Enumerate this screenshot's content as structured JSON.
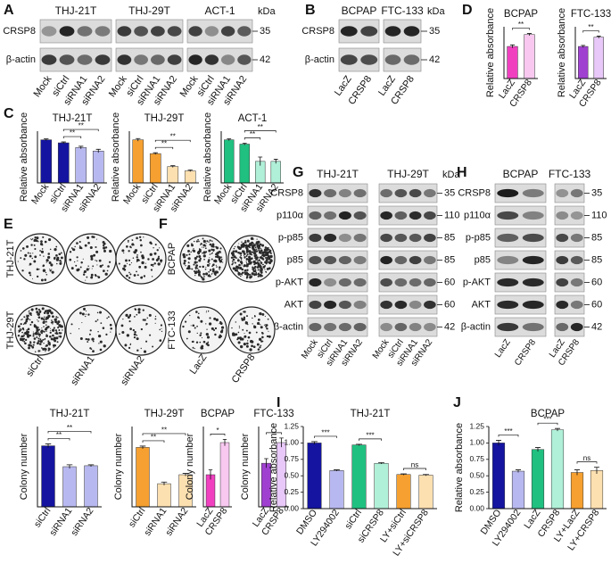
{
  "panels": [
    {
      "label": "A",
      "blot": {
        "groups": [
          {
            "name": "THJ-21T",
            "lanes": [
              "Mock",
              "siCtrl",
              "siRNA1",
              "siRNA2"
            ]
          },
          {
            "name": "THJ-29T",
            "lanes": [
              "Mock",
              "siCtrl",
              "siRNA1",
              "siRNA2"
            ]
          },
          {
            "name": "ACT-1",
            "lanes": [
              "Mock",
              "siCtrl",
              "siRNA1",
              "siRNA2"
            ]
          }
        ],
        "rows": [
          "CRSP8",
          "β-actin"
        ],
        "kda": [
          35,
          42
        ],
        "kda_unit": "kDa"
      }
    },
    {
      "label": "B",
      "blot": {
        "groups": [
          {
            "name": "BCPAP",
            "lanes": [
              "LacZ",
              "CRSP8"
            ]
          },
          {
            "name": "FTC-133",
            "lanes": [
              "LacZ",
              "CRSP8"
            ]
          }
        ],
        "rows": [
          "CRSP8",
          "β-actin"
        ],
        "kda": [
          35,
          42
        ],
        "kda_unit": "kDa"
      }
    },
    {
      "label": "D",
      "charts": [
        {
          "type": "bar",
          "title": "BCPAP",
          "ylabel": "Relative absorbance",
          "categories": [
            "LacZ",
            "CRSP8"
          ],
          "values": [
            0.62,
            0.85
          ],
          "errors": [
            0.03,
            0.02
          ],
          "colors": [
            "#f040c0",
            "#f8c8f0"
          ],
          "ylim": [
            0,
            1.0
          ],
          "significance": [
            {
              "label": "**",
              "between": [
                0,
                1
              ]
            }
          ]
        },
        {
          "type": "bar",
          "title": "FTC-133",
          "ylabel": "Relative absorbance",
          "categories": [
            "LacZ",
            "CRSP8"
          ],
          "values": [
            0.62,
            0.8
          ],
          "errors": [
            0.02,
            0.02
          ],
          "colors": [
            "#a040d0",
            "#e8c8f8"
          ],
          "ylim": [
            0,
            1.0
          ],
          "significance": [
            {
              "label": "**",
              "between": [
                0,
                1
              ]
            }
          ]
        }
      ]
    },
    {
      "label": "C",
      "charts": [
        {
          "type": "bar",
          "title": "THJ-21T",
          "ylabel": "Relative absorbance",
          "categories": [
            "Mock",
            "siCtrl",
            "siRNA1",
            "siRNA2"
          ],
          "values": [
            1.0,
            0.93,
            0.82,
            0.74
          ],
          "errors": [
            0.02,
            0.02,
            0.03,
            0.04
          ],
          "colors": [
            "#1414a0",
            "#1414a0",
            "#b8b8f0",
            "#b8b8f0"
          ],
          "ylim": [
            0,
            1.2
          ],
          "significance": [
            {
              "label": "**",
              "between": [
                1,
                2
              ]
            },
            {
              "label": "**",
              "between": [
                1,
                3
              ]
            }
          ]
        },
        {
          "type": "bar",
          "title": "THJ-29T",
          "ylabel": "Relative absorbance",
          "categories": [
            "Mock",
            "siCtrl",
            "siRNA1",
            "siRNA2"
          ],
          "values": [
            1.0,
            0.68,
            0.38,
            0.28
          ],
          "errors": [
            0.03,
            0.02,
            0.02,
            0.02
          ],
          "colors": [
            "#f5a030",
            "#f5a030",
            "#fde0b0",
            "#fde0b0"
          ],
          "ylim": [
            0,
            1.2
          ],
          "significance": [
            {
              "label": "**",
              "between": [
                1,
                2
              ]
            },
            {
              "label": "**",
              "between": [
                1,
                3
              ]
            }
          ]
        },
        {
          "type": "bar",
          "title": "ACT-1",
          "ylabel": "Relative absorbance",
          "categories": [
            "Mock",
            "siCtrl",
            "siRNA1",
            "siRNA2"
          ],
          "values": [
            1.0,
            0.9,
            0.5,
            0.5
          ],
          "errors": [
            0.02,
            0.02,
            0.1,
            0.05
          ],
          "colors": [
            "#20c080",
            "#20c080",
            "#b0f0d8",
            "#b0f0d8"
          ],
          "ylim": [
            0,
            1.2
          ],
          "significance": [
            {
              "label": "**",
              "between": [
                1,
                2
              ]
            },
            {
              "label": "**",
              "between": [
                1,
                3
              ]
            }
          ]
        }
      ]
    },
    {
      "label": "G",
      "blot": {
        "groups": [
          {
            "name": "THJ-21T",
            "lanes": [
              "Mock",
              "siCtrl",
              "siRNA1",
              "siRNA2"
            ]
          },
          {
            "name": "THJ-29T",
            "lanes": [
              "Mock",
              "siCtrl",
              "siRNA1",
              "siRNA2"
            ]
          }
        ],
        "rows": [
          "CRSP8",
          "p110α",
          "p-p85",
          "p85",
          "p-AKT",
          "AKT",
          "β-actin"
        ],
        "kda": [
          35,
          110,
          85,
          85,
          60,
          60,
          42
        ],
        "kda_unit": "kDa"
      }
    },
    {
      "label": "H",
      "blot": {
        "groups": [
          {
            "name": "BCPAP",
            "lanes": [
              "LacZ",
              "CRSP8"
            ]
          },
          {
            "name": "FTC-133",
            "lanes": [
              "LacZ",
              "CRSP8"
            ]
          }
        ],
        "rows": [
          "CRSP8",
          "p110α",
          "p-p85",
          "p85",
          "p-AKT",
          "AKT",
          "β-actin"
        ],
        "kda": [
          35,
          110,
          85,
          85,
          60,
          60,
          42
        ]
      }
    },
    {
      "label": "E",
      "colonies": {
        "rows": [
          "THJ-21T",
          "THJ-29T"
        ],
        "columns": [
          "siCtrl",
          "siRNA1",
          "siRNA2"
        ]
      },
      "charts": [
        {
          "type": "bar",
          "title": "THJ-21T",
          "ylabel": "Colony number",
          "categories": [
            "siCtrl",
            "siRNA1",
            "siRNA2"
          ],
          "values": [
            190,
            125,
            128
          ],
          "errors": [
            6,
            6,
            3
          ],
          "colors": [
            "#1414a0",
            "#b8b8f0",
            "#b8b8f0"
          ],
          "ylim": [
            0,
            250
          ],
          "significance": [
            {
              "label": "**",
              "between": [
                0,
                1
              ]
            },
            {
              "label": "**",
              "between": [
                0,
                2
              ]
            }
          ]
        },
        {
          "type": "bar",
          "title": "THJ-29T",
          "ylabel": "Colony number",
          "categories": [
            "siCtrl",
            "siRNA1",
            "siRNA2"
          ],
          "values": [
            185,
            72,
            100
          ],
          "errors": [
            4,
            5,
            4
          ],
          "colors": [
            "#f5a030",
            "#fde0b0",
            "#fde0b0"
          ],
          "ylim": [
            0,
            250
          ],
          "significance": [
            {
              "label": "**",
              "between": [
                0,
                1
              ]
            },
            {
              "label": "**",
              "between": [
                0,
                2
              ]
            }
          ]
        }
      ]
    },
    {
      "label": "F",
      "colonies": {
        "rows": [
          "BCPAP",
          "FTC-133"
        ],
        "columns": [
          "LacZ",
          "CRSP8"
        ]
      },
      "charts": [
        {
          "type": "bar",
          "title": "BCPAP",
          "ylabel": "Colony number",
          "categories": [
            "LacZ",
            "CRSP8"
          ],
          "values": [
            20,
            40
          ],
          "errors": [
            3,
            2
          ],
          "colors": [
            "#f040c0",
            "#f8c8f0"
          ],
          "ylim": [
            0,
            50
          ],
          "significance": [
            {
              "label": "*",
              "between": [
                0,
                1
              ]
            }
          ]
        },
        {
          "type": "bar",
          "title": "FTC-133",
          "ylabel": "Colony number",
          "categories": [
            "LacZ",
            "CRSP8"
          ],
          "values": [
            19,
            28
          ],
          "errors": [
            2,
            2
          ],
          "colors": [
            "#a040d0",
            "#e8c8f8"
          ],
          "ylim": [
            0,
            35
          ],
          "significance": [
            {
              "label": "*",
              "between": [
                0,
                1
              ]
            }
          ]
        }
      ]
    },
    {
      "label": "I",
      "charts": [
        {
          "type": "bar",
          "title": "THJ-21T",
          "ylabel": "Relative absorbance",
          "categories": [
            "DMSO",
            "LY294002",
            "siCtrl",
            "siCRSP8",
            "LY+siCtrl",
            "LY+siCRSP8"
          ],
          "values": [
            1.0,
            0.58,
            0.97,
            0.69,
            0.52,
            0.51
          ],
          "errors": [
            0.02,
            0.01,
            0.01,
            0.01,
            0.01,
            0.01
          ],
          "colors": [
            "#1414a0",
            "#b8b8f0",
            "#20c080",
            "#b0f0d8",
            "#f5a030",
            "#fde0b0"
          ],
          "ylim": [
            0,
            1.25
          ],
          "yticks": [
            {
              "value": 0,
              "label": "0.00"
            },
            {
              "value": 0.25,
              "label": "0.25"
            },
            {
              "value": 0.5,
              "label": "0.50"
            },
            {
              "value": 0.75,
              "label": "0.75"
            },
            {
              "value": 1.0,
              "label": "1.00"
            },
            {
              "value": 1.25,
              "label": "1.25"
            }
          ],
          "significance": [
            {
              "label": "***",
              "between": [
                0,
                1
              ]
            },
            {
              "label": "***",
              "between": [
                2,
                3
              ]
            },
            {
              "label": "ns",
              "between": [
                4,
                5
              ]
            }
          ]
        }
      ]
    },
    {
      "label": "J",
      "charts": [
        {
          "type": "bar",
          "title": "BCPAP",
          "ylabel": "Relative absorbance",
          "categories": [
            "DMSO",
            "LY294002",
            "LacZ",
            "CRSP8",
            "LY+LacZ",
            "LY+CRSP8"
          ],
          "values": [
            1.0,
            0.57,
            0.9,
            1.2,
            0.55,
            0.58
          ],
          "errors": [
            0.04,
            0.02,
            0.03,
            0.02,
            0.04,
            0.05
          ],
          "colors": [
            "#1414a0",
            "#b8b8f0",
            "#20c080",
            "#b0f0d8",
            "#f5a030",
            "#fde0b0"
          ],
          "ylim": [
            0,
            1.25
          ],
          "yticks": [
            {
              "value": 0,
              "label": "0.00"
            },
            {
              "value": 0.25,
              "label": "0.25"
            },
            {
              "value": 0.5,
              "label": "0.50"
            },
            {
              "value": 0.75,
              "label": "0.75"
            },
            {
              "value": 1.0,
              "label": "1.00"
            },
            {
              "value": 1.25,
              "label": "1.25"
            }
          ],
          "significance": [
            {
              "label": "***",
              "between": [
                0,
                1
              ]
            },
            {
              "label": "***",
              "between": [
                2,
                3
              ]
            },
            {
              "label": "ns",
              "between": [
                4,
                5
              ]
            }
          ]
        }
      ]
    }
  ]
}
